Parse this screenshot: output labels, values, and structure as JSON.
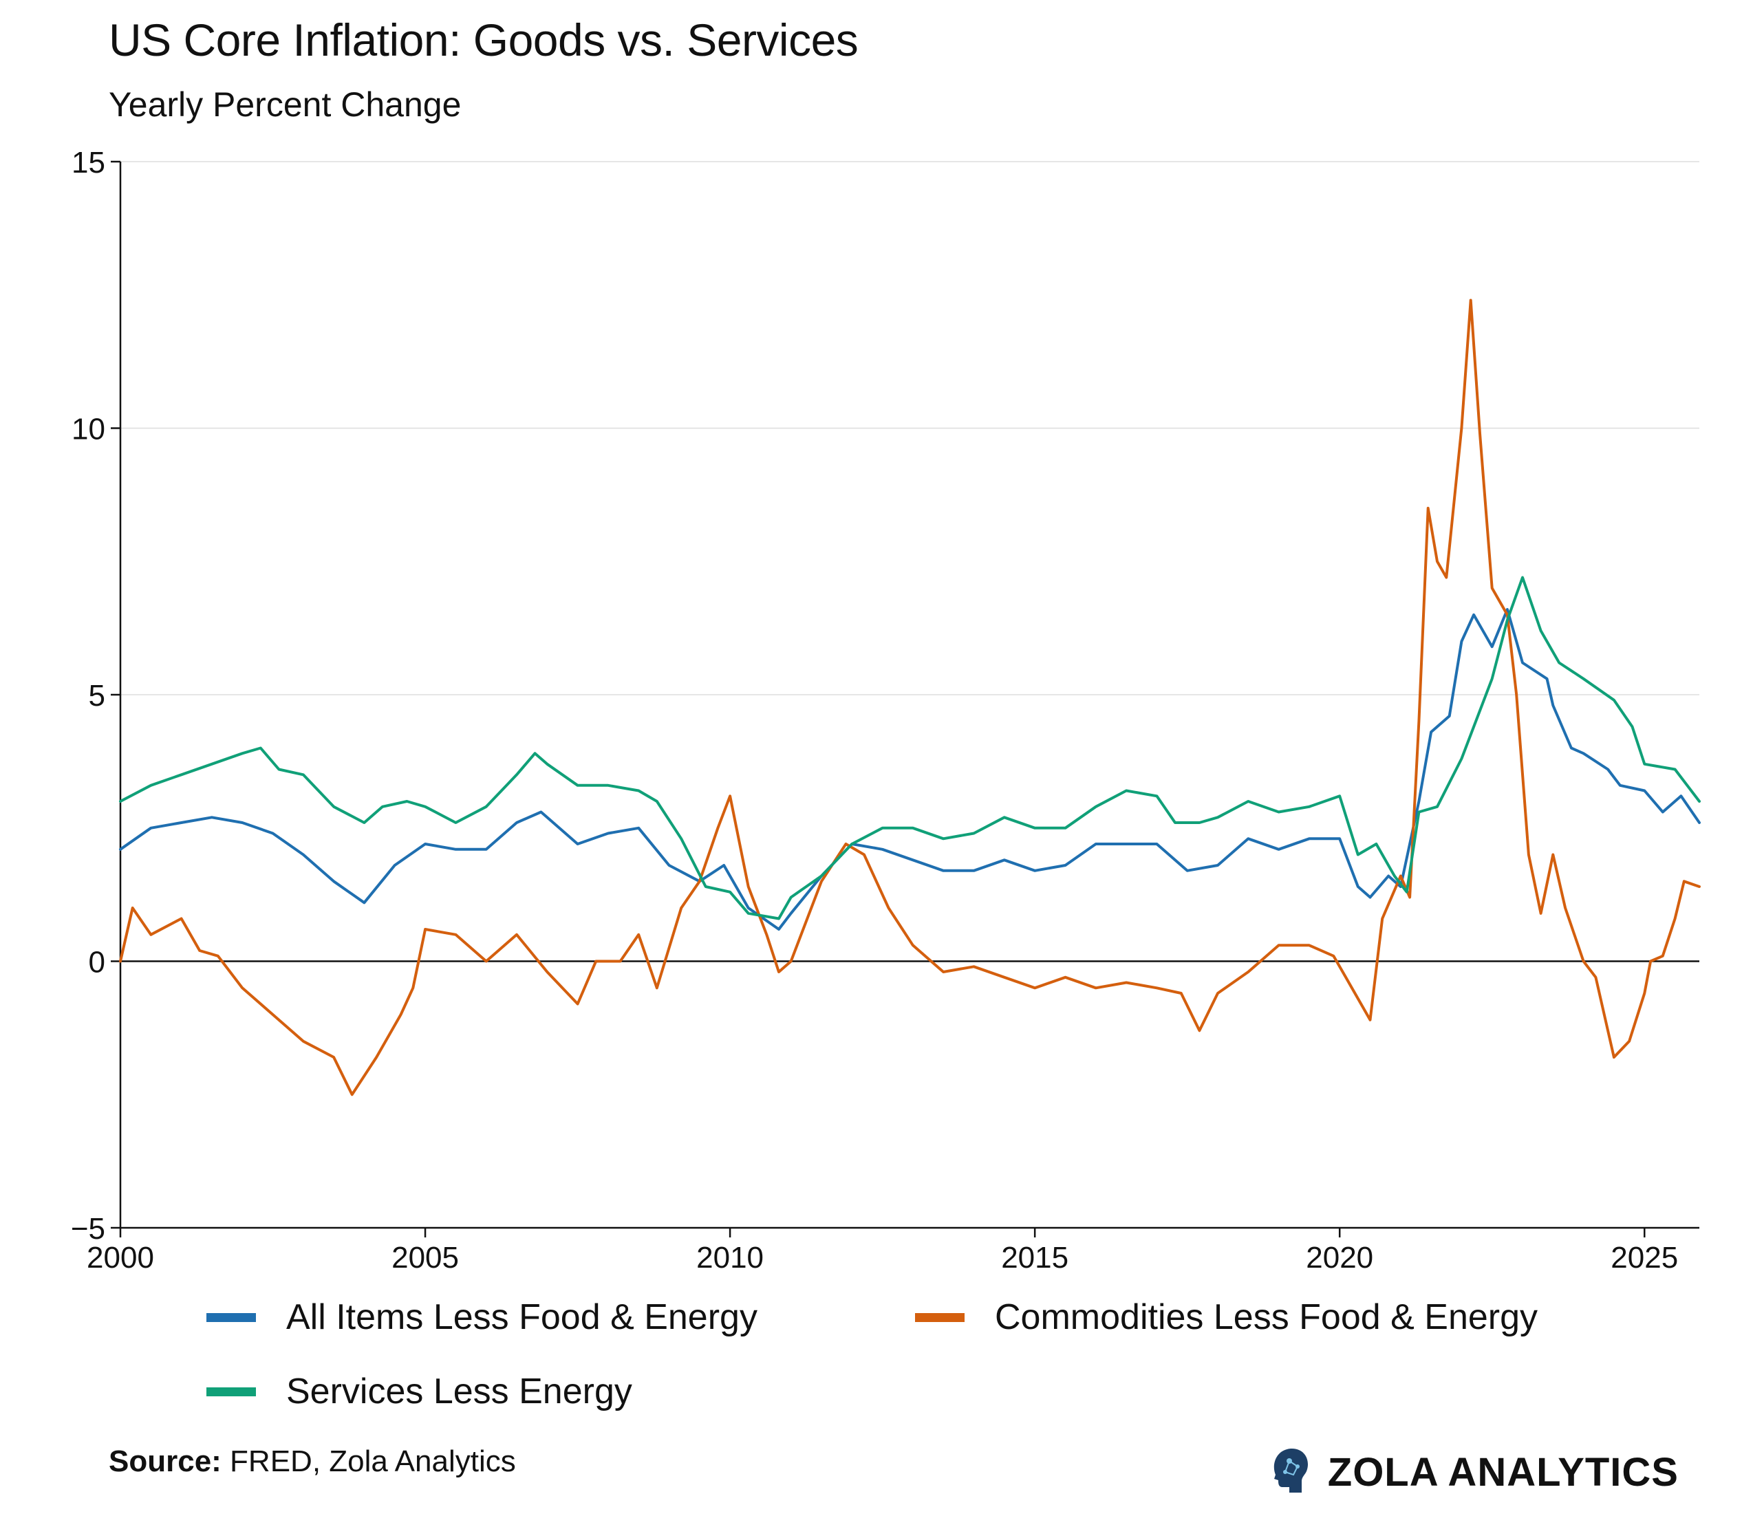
{
  "header": {
    "title": "US Core Inflation: Goods vs. Services",
    "subtitle": "Yearly Percent Change"
  },
  "footer": {
    "source_label": "Source:",
    "source_text": " FRED, Zola Analytics",
    "brand": "ZOLA ANALYTICS"
  },
  "chart_data": {
    "type": "line",
    "title": "US Core Inflation: Goods vs. Services",
    "subtitle": "Yearly Percent Change",
    "xlabel": "",
    "ylabel": "",
    "xlim": [
      2000,
      2025.9
    ],
    "ylim": [
      -5,
      15
    ],
    "yticks": [
      "−5",
      "0",
      "5",
      "10",
      "15"
    ],
    "ytick_values": [
      -5,
      0,
      5,
      10,
      15
    ],
    "xticks": [
      "2000",
      "2005",
      "2010",
      "2015",
      "2020",
      "2025"
    ],
    "xtick_values": [
      2000,
      2005,
      2010,
      2015,
      2020,
      2025
    ],
    "grid": "horizontal",
    "zero_line": true,
    "legend_position": "bottom",
    "series": [
      {
        "name": "All Items Less Food & Energy",
        "color": "#1f6fb0",
        "points": [
          [
            2000.0,
            2.1
          ],
          [
            2000.5,
            2.5
          ],
          [
            2001.0,
            2.6
          ],
          [
            2001.5,
            2.7
          ],
          [
            2002.0,
            2.6
          ],
          [
            2002.5,
            2.4
          ],
          [
            2003.0,
            2.0
          ],
          [
            2003.5,
            1.5
          ],
          [
            2004.0,
            1.1
          ],
          [
            2004.5,
            1.8
          ],
          [
            2005.0,
            2.2
          ],
          [
            2005.5,
            2.1
          ],
          [
            2006.0,
            2.1
          ],
          [
            2006.5,
            2.6
          ],
          [
            2006.9,
            2.8
          ],
          [
            2007.5,
            2.2
          ],
          [
            2008.0,
            2.4
          ],
          [
            2008.5,
            2.5
          ],
          [
            2009.0,
            1.8
          ],
          [
            2009.5,
            1.5
          ],
          [
            2009.9,
            1.8
          ],
          [
            2010.3,
            1.0
          ],
          [
            2010.8,
            0.6
          ],
          [
            2011.0,
            0.9
          ],
          [
            2011.5,
            1.6
          ],
          [
            2012.0,
            2.2
          ],
          [
            2012.5,
            2.1
          ],
          [
            2013.0,
            1.9
          ],
          [
            2013.5,
            1.7
          ],
          [
            2014.0,
            1.7
          ],
          [
            2014.5,
            1.9
          ],
          [
            2015.0,
            1.7
          ],
          [
            2015.5,
            1.8
          ],
          [
            2016.0,
            2.2
          ],
          [
            2016.5,
            2.2
          ],
          [
            2017.0,
            2.2
          ],
          [
            2017.5,
            1.7
          ],
          [
            2018.0,
            1.8
          ],
          [
            2018.5,
            2.3
          ],
          [
            2019.0,
            2.1
          ],
          [
            2019.5,
            2.3
          ],
          [
            2020.0,
            2.3
          ],
          [
            2020.3,
            1.4
          ],
          [
            2020.5,
            1.2
          ],
          [
            2020.8,
            1.6
          ],
          [
            2021.0,
            1.4
          ],
          [
            2021.3,
            3.0
          ],
          [
            2021.5,
            4.3
          ],
          [
            2021.8,
            4.6
          ],
          [
            2022.0,
            6.0
          ],
          [
            2022.2,
            6.5
          ],
          [
            2022.5,
            5.9
          ],
          [
            2022.75,
            6.6
          ],
          [
            2023.0,
            5.6
          ],
          [
            2023.4,
            5.3
          ],
          [
            2023.5,
            4.8
          ],
          [
            2023.8,
            4.0
          ],
          [
            2024.0,
            3.9
          ],
          [
            2024.4,
            3.6
          ],
          [
            2024.6,
            3.3
          ],
          [
            2025.0,
            3.2
          ],
          [
            2025.3,
            2.8
          ],
          [
            2025.6,
            3.1
          ],
          [
            2025.9,
            2.6
          ]
        ]
      },
      {
        "name": "Commodities Less Food & Energy",
        "color": "#d45f0e",
        "points": [
          [
            2000.0,
            0.0
          ],
          [
            2000.2,
            1.0
          ],
          [
            2000.5,
            0.5
          ],
          [
            2001.0,
            0.8
          ],
          [
            2001.3,
            0.2
          ],
          [
            2001.6,
            0.1
          ],
          [
            2002.0,
            -0.5
          ],
          [
            2002.5,
            -1.0
          ],
          [
            2003.0,
            -1.5
          ],
          [
            2003.5,
            -1.8
          ],
          [
            2003.8,
            -2.5
          ],
          [
            2004.2,
            -1.8
          ],
          [
            2004.6,
            -1.0
          ],
          [
            2004.8,
            -0.5
          ],
          [
            2005.0,
            0.6
          ],
          [
            2005.5,
            0.5
          ],
          [
            2006.0,
            0.0
          ],
          [
            2006.5,
            0.5
          ],
          [
            2007.0,
            -0.2
          ],
          [
            2007.5,
            -0.8
          ],
          [
            2007.8,
            0.0
          ],
          [
            2008.2,
            0.0
          ],
          [
            2008.5,
            0.5
          ],
          [
            2008.8,
            -0.5
          ],
          [
            2009.2,
            1.0
          ],
          [
            2009.5,
            1.5
          ],
          [
            2009.8,
            2.5
          ],
          [
            2010.0,
            3.1
          ],
          [
            2010.3,
            1.4
          ],
          [
            2010.6,
            0.5
          ],
          [
            2010.8,
            -0.2
          ],
          [
            2011.0,
            0.0
          ],
          [
            2011.5,
            1.5
          ],
          [
            2011.9,
            2.2
          ],
          [
            2012.2,
            2.0
          ],
          [
            2012.6,
            1.0
          ],
          [
            2013.0,
            0.3
          ],
          [
            2013.5,
            -0.2
          ],
          [
            2014.0,
            -0.1
          ],
          [
            2014.5,
            -0.3
          ],
          [
            2015.0,
            -0.5
          ],
          [
            2015.5,
            -0.3
          ],
          [
            2016.0,
            -0.5
          ],
          [
            2016.5,
            -0.4
          ],
          [
            2017.0,
            -0.5
          ],
          [
            2017.4,
            -0.6
          ],
          [
            2017.7,
            -1.3
          ],
          [
            2018.0,
            -0.6
          ],
          [
            2018.5,
            -0.2
          ],
          [
            2019.0,
            0.3
          ],
          [
            2019.5,
            0.3
          ],
          [
            2019.9,
            0.1
          ],
          [
            2020.1,
            -0.3
          ],
          [
            2020.5,
            -1.1
          ],
          [
            2020.7,
            0.8
          ],
          [
            2021.0,
            1.6
          ],
          [
            2021.15,
            1.2
          ],
          [
            2021.3,
            4.5
          ],
          [
            2021.45,
            8.5
          ],
          [
            2021.6,
            7.5
          ],
          [
            2021.75,
            7.2
          ],
          [
            2022.0,
            10.0
          ],
          [
            2022.15,
            12.4
          ],
          [
            2022.3,
            9.9
          ],
          [
            2022.5,
            7.0
          ],
          [
            2022.75,
            6.5
          ],
          [
            2022.9,
            5.0
          ],
          [
            2023.1,
            2.0
          ],
          [
            2023.3,
            0.9
          ],
          [
            2023.5,
            2.0
          ],
          [
            2023.7,
            1.0
          ],
          [
            2024.0,
            0.0
          ],
          [
            2024.2,
            -0.3
          ],
          [
            2024.5,
            -1.8
          ],
          [
            2024.75,
            -1.5
          ],
          [
            2025.0,
            -0.6
          ],
          [
            2025.1,
            0.0
          ],
          [
            2025.3,
            0.1
          ],
          [
            2025.5,
            0.8
          ],
          [
            2025.65,
            1.5
          ],
          [
            2025.9,
            1.4
          ]
        ]
      },
      {
        "name": "Services Less Energy",
        "color": "#10a078",
        "points": [
          [
            2000.0,
            3.0
          ],
          [
            2000.5,
            3.3
          ],
          [
            2001.0,
            3.5
          ],
          [
            2001.5,
            3.7
          ],
          [
            2002.0,
            3.9
          ],
          [
            2002.3,
            4.0
          ],
          [
            2002.6,
            3.6
          ],
          [
            2003.0,
            3.5
          ],
          [
            2003.5,
            2.9
          ],
          [
            2004.0,
            2.6
          ],
          [
            2004.3,
            2.9
          ],
          [
            2004.7,
            3.0
          ],
          [
            2005.0,
            2.9
          ],
          [
            2005.5,
            2.6
          ],
          [
            2006.0,
            2.9
          ],
          [
            2006.5,
            3.5
          ],
          [
            2006.8,
            3.9
          ],
          [
            2007.0,
            3.7
          ],
          [
            2007.5,
            3.3
          ],
          [
            2008.0,
            3.3
          ],
          [
            2008.5,
            3.2
          ],
          [
            2008.8,
            3.0
          ],
          [
            2009.2,
            2.3
          ],
          [
            2009.6,
            1.4
          ],
          [
            2010.0,
            1.3
          ],
          [
            2010.3,
            0.9
          ],
          [
            2010.8,
            0.8
          ],
          [
            2011.0,
            1.2
          ],
          [
            2011.5,
            1.6
          ],
          [
            2012.0,
            2.2
          ],
          [
            2012.5,
            2.5
          ],
          [
            2013.0,
            2.5
          ],
          [
            2013.5,
            2.3
          ],
          [
            2014.0,
            2.4
          ],
          [
            2014.5,
            2.7
          ],
          [
            2015.0,
            2.5
          ],
          [
            2015.5,
            2.5
          ],
          [
            2016.0,
            2.9
          ],
          [
            2016.5,
            3.2
          ],
          [
            2017.0,
            3.1
          ],
          [
            2017.3,
            2.6
          ],
          [
            2017.7,
            2.6
          ],
          [
            2018.0,
            2.7
          ],
          [
            2018.5,
            3.0
          ],
          [
            2019.0,
            2.8
          ],
          [
            2019.5,
            2.9
          ],
          [
            2020.0,
            3.1
          ],
          [
            2020.3,
            2.0
          ],
          [
            2020.6,
            2.2
          ],
          [
            2020.9,
            1.6
          ],
          [
            2021.1,
            1.3
          ],
          [
            2021.3,
            2.8
          ],
          [
            2021.6,
            2.9
          ],
          [
            2022.0,
            3.8
          ],
          [
            2022.5,
            5.3
          ],
          [
            2022.75,
            6.4
          ],
          [
            2023.0,
            7.2
          ],
          [
            2023.3,
            6.2
          ],
          [
            2023.6,
            5.6
          ],
          [
            2024.0,
            5.3
          ],
          [
            2024.5,
            4.9
          ],
          [
            2024.8,
            4.4
          ],
          [
            2025.0,
            3.7
          ],
          [
            2025.5,
            3.6
          ],
          [
            2025.9,
            3.0
          ]
        ]
      }
    ]
  }
}
